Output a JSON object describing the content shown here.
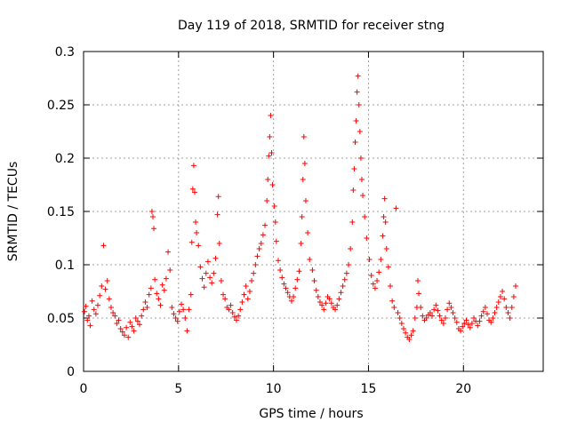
{
  "chart_data": {
    "type": "scatter",
    "title": "Day 119 of 2018, SRMTID for receiver stng",
    "xlabel": "GPS time / hours",
    "ylabel": "SRMTID / TECUs",
    "xlim": [
      0,
      24.2
    ],
    "ylim": [
      0,
      0.3
    ],
    "xticks": [
      0,
      5,
      10,
      15,
      20
    ],
    "xtick_labels": [
      "0",
      "5",
      "10",
      "15",
      "20"
    ],
    "yticks": [
      0,
      0.05,
      0.1,
      0.15,
      0.2,
      0.25,
      0.3
    ],
    "ytick_labels": [
      "0",
      "0.05",
      "0.1",
      "0.15",
      "0.2",
      "0.25",
      "0.3"
    ],
    "grid": true,
    "marker": "+",
    "color": "#ff0000",
    "series": [
      {
        "name": "SRMTID",
        "points": [
          [
            0.05,
            0.056
          ],
          [
            0.12,
            0.061
          ],
          [
            0.2,
            0.048
          ],
          [
            0.28,
            0.052
          ],
          [
            0.35,
            0.043
          ],
          [
            0.45,
            0.066
          ],
          [
            0.55,
            0.058
          ],
          [
            0.65,
            0.054
          ],
          [
            0.75,
            0.062
          ],
          [
            0.85,
            0.071
          ],
          [
            0.95,
            0.08
          ],
          [
            1.05,
            0.118
          ],
          [
            1.15,
            0.077
          ],
          [
            1.25,
            0.085
          ],
          [
            1.35,
            0.068
          ],
          [
            1.45,
            0.06
          ],
          [
            1.55,
            0.055
          ],
          [
            1.65,
            0.052
          ],
          [
            1.75,
            0.045
          ],
          [
            1.85,
            0.048
          ],
          [
            1.95,
            0.04
          ],
          [
            2.05,
            0.037
          ],
          [
            2.15,
            0.034
          ],
          [
            2.25,
            0.041
          ],
          [
            2.35,
            0.032
          ],
          [
            2.45,
            0.046
          ],
          [
            2.55,
            0.042
          ],
          [
            2.65,
            0.038
          ],
          [
            2.75,
            0.05
          ],
          [
            2.85,
            0.047
          ],
          [
            2.95,
            0.044
          ],
          [
            3.05,
            0.052
          ],
          [
            3.15,
            0.058
          ],
          [
            3.25,
            0.065
          ],
          [
            3.35,
            0.06
          ],
          [
            3.45,
            0.072
          ],
          [
            3.55,
            0.078
          ],
          [
            3.6,
            0.15
          ],
          [
            3.65,
            0.145
          ],
          [
            3.7,
            0.134
          ],
          [
            3.75,
            0.086
          ],
          [
            3.85,
            0.073
          ],
          [
            3.95,
            0.068
          ],
          [
            4.05,
            0.062
          ],
          [
            4.15,
            0.081
          ],
          [
            4.25,
            0.076
          ],
          [
            4.35,
            0.087
          ],
          [
            4.45,
            0.112
          ],
          [
            4.55,
            0.095
          ],
          [
            4.65,
            0.06
          ],
          [
            4.75,
            0.054
          ],
          [
            4.85,
            0.05
          ],
          [
            4.95,
            0.047
          ],
          [
            5.05,
            0.056
          ],
          [
            5.15,
            0.063
          ],
          [
            5.25,
            0.058
          ],
          [
            5.35,
            0.05
          ],
          [
            5.45,
            0.038
          ],
          [
            5.55,
            0.058
          ],
          [
            5.65,
            0.072
          ],
          [
            5.7,
            0.121
          ],
          [
            5.75,
            0.171
          ],
          [
            5.8,
            0.193
          ],
          [
            5.85,
            0.168
          ],
          [
            5.9,
            0.14
          ],
          [
            5.95,
            0.13
          ],
          [
            6.05,
            0.118
          ],
          [
            6.15,
            0.098
          ],
          [
            6.25,
            0.087
          ],
          [
            6.35,
            0.079
          ],
          [
            6.45,
            0.092
          ],
          [
            6.55,
            0.103
          ],
          [
            6.65,
            0.088
          ],
          [
            6.75,
            0.083
          ],
          [
            6.85,
            0.092
          ],
          [
            6.95,
            0.106
          ],
          [
            7.05,
            0.147
          ],
          [
            7.1,
            0.164
          ],
          [
            7.15,
            0.12
          ],
          [
            7.25,
            0.085
          ],
          [
            7.35,
            0.072
          ],
          [
            7.45,
            0.068
          ],
          [
            7.55,
            0.06
          ],
          [
            7.65,
            0.058
          ],
          [
            7.75,
            0.062
          ],
          [
            7.85,
            0.055
          ],
          [
            7.95,
            0.051
          ],
          [
            8.05,
            0.048
          ],
          [
            8.15,
            0.052
          ],
          [
            8.25,
            0.058
          ],
          [
            8.35,
            0.065
          ],
          [
            8.45,
            0.072
          ],
          [
            8.55,
            0.08
          ],
          [
            8.65,
            0.068
          ],
          [
            8.75,
            0.075
          ],
          [
            8.85,
            0.085
          ],
          [
            8.95,
            0.092
          ],
          [
            9.05,
            0.1
          ],
          [
            9.15,
            0.108
          ],
          [
            9.25,
            0.115
          ],
          [
            9.35,
            0.12
          ],
          [
            9.45,
            0.128
          ],
          [
            9.55,
            0.137
          ],
          [
            9.65,
            0.16
          ],
          [
            9.7,
            0.18
          ],
          [
            9.75,
            0.202
          ],
          [
            9.8,
            0.22
          ],
          [
            9.85,
            0.24
          ],
          [
            9.9,
            0.205
          ],
          [
            9.95,
            0.175
          ],
          [
            10.05,
            0.155
          ],
          [
            10.1,
            0.14
          ],
          [
            10.15,
            0.122
          ],
          [
            10.25,
            0.104
          ],
          [
            10.35,
            0.095
          ],
          [
            10.45,
            0.088
          ],
          [
            10.55,
            0.082
          ],
          [
            10.65,
            0.078
          ],
          [
            10.75,
            0.074
          ],
          [
            10.85,
            0.07
          ],
          [
            10.95,
            0.066
          ],
          [
            11.05,
            0.07
          ],
          [
            11.15,
            0.078
          ],
          [
            11.25,
            0.086
          ],
          [
            11.35,
            0.094
          ],
          [
            11.45,
            0.12
          ],
          [
            11.5,
            0.145
          ],
          [
            11.55,
            0.18
          ],
          [
            11.6,
            0.22
          ],
          [
            11.65,
            0.195
          ],
          [
            11.7,
            0.16
          ],
          [
            11.8,
            0.13
          ],
          [
            11.9,
            0.105
          ],
          [
            12.05,
            0.095
          ],
          [
            12.15,
            0.085
          ],
          [
            12.25,
            0.076
          ],
          [
            12.35,
            0.07
          ],
          [
            12.45,
            0.065
          ],
          [
            12.55,
            0.062
          ],
          [
            12.65,
            0.058
          ],
          [
            12.75,
            0.064
          ],
          [
            12.85,
            0.07
          ],
          [
            12.95,
            0.068
          ],
          [
            13.05,
            0.064
          ],
          [
            13.15,
            0.06
          ],
          [
            13.25,
            0.058
          ],
          [
            13.35,
            0.062
          ],
          [
            13.45,
            0.068
          ],
          [
            13.55,
            0.074
          ],
          [
            13.65,
            0.08
          ],
          [
            13.75,
            0.086
          ],
          [
            13.85,
            0.092
          ],
          [
            13.95,
            0.1
          ],
          [
            14.05,
            0.115
          ],
          [
            14.15,
            0.14
          ],
          [
            14.2,
            0.17
          ],
          [
            14.25,
            0.19
          ],
          [
            14.3,
            0.215
          ],
          [
            14.35,
            0.235
          ],
          [
            14.4,
            0.262
          ],
          [
            14.45,
            0.277
          ],
          [
            14.5,
            0.25
          ],
          [
            14.55,
            0.225
          ],
          [
            14.6,
            0.2
          ],
          [
            14.65,
            0.18
          ],
          [
            14.7,
            0.165
          ],
          [
            14.8,
            0.145
          ],
          [
            14.9,
            0.125
          ],
          [
            15.05,
            0.105
          ],
          [
            15.15,
            0.09
          ],
          [
            15.25,
            0.082
          ],
          [
            15.35,
            0.078
          ],
          [
            15.45,
            0.085
          ],
          [
            15.55,
            0.093
          ],
          [
            15.65,
            0.105
          ],
          [
            15.75,
            0.127
          ],
          [
            15.8,
            0.145
          ],
          [
            15.85,
            0.162
          ],
          [
            15.9,
            0.14
          ],
          [
            15.95,
            0.115
          ],
          [
            16.05,
            0.098
          ],
          [
            16.15,
            0.08
          ],
          [
            16.25,
            0.066
          ],
          [
            16.35,
            0.06
          ],
          [
            16.45,
            0.153
          ],
          [
            16.55,
            0.055
          ],
          [
            16.65,
            0.05
          ],
          [
            16.75,
            0.045
          ],
          [
            16.85,
            0.04
          ],
          [
            16.95,
            0.036
          ],
          [
            17.05,
            0.032
          ],
          [
            17.15,
            0.03
          ],
          [
            17.25,
            0.034
          ],
          [
            17.35,
            0.038
          ],
          [
            17.45,
            0.05
          ],
          [
            17.55,
            0.06
          ],
          [
            17.6,
            0.085
          ],
          [
            17.65,
            0.073
          ],
          [
            17.75,
            0.06
          ],
          [
            17.85,
            0.052
          ],
          [
            17.95,
            0.048
          ],
          [
            18.05,
            0.05
          ],
          [
            18.15,
            0.053
          ],
          [
            18.25,
            0.055
          ],
          [
            18.35,
            0.052
          ],
          [
            18.45,
            0.058
          ],
          [
            18.55,
            0.062
          ],
          [
            18.65,
            0.057
          ],
          [
            18.75,
            0.052
          ],
          [
            18.85,
            0.048
          ],
          [
            18.95,
            0.045
          ],
          [
            19.05,
            0.05
          ],
          [
            19.15,
            0.058
          ],
          [
            19.25,
            0.064
          ],
          [
            19.35,
            0.06
          ],
          [
            19.45,
            0.055
          ],
          [
            19.55,
            0.05
          ],
          [
            19.65,
            0.046
          ],
          [
            19.75,
            0.04
          ],
          [
            19.85,
            0.038
          ],
          [
            19.95,
            0.042
          ],
          [
            20.05,
            0.045
          ],
          [
            20.15,
            0.048
          ],
          [
            20.25,
            0.044
          ],
          [
            20.35,
            0.041
          ],
          [
            20.45,
            0.045
          ],
          [
            20.55,
            0.05
          ],
          [
            20.65,
            0.047
          ],
          [
            20.75,
            0.043
          ],
          [
            20.85,
            0.047
          ],
          [
            20.95,
            0.052
          ],
          [
            21.05,
            0.056
          ],
          [
            21.15,
            0.06
          ],
          [
            21.25,
            0.054
          ],
          [
            21.35,
            0.048
          ],
          [
            21.45,
            0.046
          ],
          [
            21.55,
            0.05
          ],
          [
            21.65,
            0.055
          ],
          [
            21.75,
            0.06
          ],
          [
            21.85,
            0.065
          ],
          [
            21.95,
            0.07
          ],
          [
            22.05,
            0.075
          ],
          [
            22.15,
            0.068
          ],
          [
            22.25,
            0.06
          ],
          [
            22.35,
            0.055
          ],
          [
            22.45,
            0.05
          ],
          [
            22.55,
            0.06
          ],
          [
            22.65,
            0.07
          ],
          [
            22.75,
            0.08
          ]
        ]
      }
    ]
  }
}
